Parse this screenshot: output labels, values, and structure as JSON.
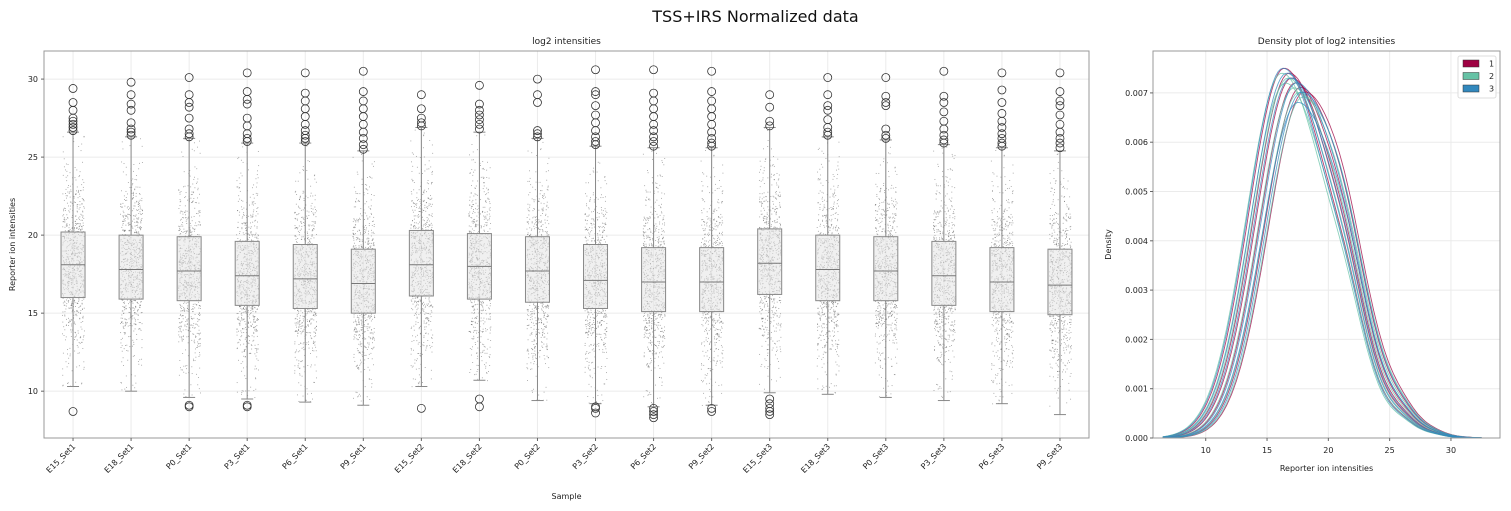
{
  "suptitle": "TSS+IRS Normalized data",
  "chart_data": [
    {
      "type": "box",
      "title": "log2 intensities",
      "xlabel": "Sample",
      "ylabel": "Reporter ion intensities",
      "ylim": [
        7,
        31.8
      ],
      "yticks": [
        10,
        15,
        20,
        25,
        30
      ],
      "grid": true,
      "overlay": "jittered raw points (strip plot)",
      "samples": [
        {
          "label": "E15_Set1",
          "q1": 16.0,
          "median": 18.1,
          "q3": 20.2,
          "whislo": 10.3,
          "whishi": 26.6,
          "fliers_high": [
            26.7,
            26.9,
            27.1,
            27.3,
            27.5,
            28.0,
            28.5,
            29.4
          ],
          "fliers_low": [
            8.7
          ]
        },
        {
          "label": "E18_Set1",
          "q1": 15.9,
          "median": 17.8,
          "q3": 20.0,
          "whislo": 10.0,
          "whishi": 26.3,
          "fliers_high": [
            26.4,
            26.6,
            26.8,
            27.2,
            28.0,
            28.4,
            29.0,
            29.8
          ],
          "fliers_low": []
        },
        {
          "label": "P0_Set1",
          "q1": 15.8,
          "median": 17.7,
          "q3": 19.9,
          "whislo": 9.6,
          "whishi": 26.2,
          "fliers_high": [
            26.3,
            26.5,
            26.8,
            27.5,
            28.2,
            28.5,
            29.0,
            30.1
          ],
          "fliers_low": [
            9.0,
            9.1
          ]
        },
        {
          "label": "P3_Set1",
          "q1": 15.5,
          "median": 17.4,
          "q3": 19.6,
          "whislo": 9.5,
          "whishi": 25.9,
          "fliers_high": [
            26.0,
            26.2,
            26.5,
            27.0,
            27.5,
            28.4,
            28.7,
            29.2,
            30.4
          ],
          "fliers_low": [
            9.0,
            9.1
          ]
        },
        {
          "label": "P6_Set1",
          "q1": 15.3,
          "median": 17.2,
          "q3": 19.4,
          "whislo": 9.3,
          "whishi": 25.9,
          "fliers_high": [
            26.0,
            26.2,
            26.4,
            26.7,
            27.1,
            27.6,
            28.1,
            28.6,
            29.1,
            30.4
          ],
          "fliers_low": []
        },
        {
          "label": "P9_Set1",
          "q1": 15.0,
          "median": 16.9,
          "q3": 19.1,
          "whislo": 9.1,
          "whishi": 25.4,
          "fliers_high": [
            25.5,
            25.8,
            26.2,
            26.6,
            27.1,
            27.6,
            28.1,
            28.6,
            29.2,
            30.5
          ],
          "fliers_low": []
        },
        {
          "label": "E15_Set2",
          "q1": 16.1,
          "median": 18.1,
          "q3": 20.3,
          "whislo": 10.3,
          "whishi": 26.9,
          "fliers_high": [
            27.0,
            27.2,
            27.5,
            28.1,
            29.0
          ],
          "fliers_low": [
            8.9
          ]
        },
        {
          "label": "E18_Set2",
          "q1": 15.9,
          "median": 18.0,
          "q3": 20.1,
          "whislo": 10.7,
          "whishi": 26.6,
          "fliers_high": [
            26.8,
            27.1,
            27.4,
            27.7,
            28.0,
            28.4,
            29.6
          ],
          "fliers_low": [
            9.0,
            9.5
          ]
        },
        {
          "label": "P0_Set2",
          "q1": 15.7,
          "median": 17.7,
          "q3": 19.9,
          "whislo": 9.4,
          "whishi": 26.2,
          "fliers_high": [
            26.3,
            26.5,
            26.7,
            28.5,
            29.0,
            30.0
          ],
          "fliers_low": []
        },
        {
          "label": "P3_Set2",
          "q1": 15.3,
          "median": 17.1,
          "q3": 19.4,
          "whislo": 9.2,
          "whishi": 25.7,
          "fliers_high": [
            25.8,
            26.0,
            26.3,
            26.7,
            27.2,
            27.7,
            28.3,
            29.0,
            29.2,
            30.6
          ],
          "fliers_low": [
            8.6,
            8.9,
            9.0
          ]
        },
        {
          "label": "P6_Set2",
          "q1": 15.1,
          "median": 17.0,
          "q3": 19.2,
          "whislo": 9.0,
          "whishi": 25.6,
          "fliers_high": [
            25.7,
            26.0,
            26.3,
            26.7,
            27.1,
            27.6,
            28.1,
            28.6,
            29.1,
            30.6
          ],
          "fliers_low": [
            8.3,
            8.5,
            8.7,
            8.9
          ]
        },
        {
          "label": "P9_Set2",
          "q1": 15.1,
          "median": 17.0,
          "q3": 19.2,
          "whislo": 9.1,
          "whishi": 25.6,
          "fliers_high": [
            25.7,
            25.9,
            26.2,
            26.6,
            27.1,
            27.6,
            28.1,
            28.6,
            29.2,
            30.5
          ],
          "fliers_low": [
            8.7,
            8.9
          ]
        },
        {
          "label": "E15_Set3",
          "q1": 16.2,
          "median": 18.2,
          "q3": 20.4,
          "whislo": 9.9,
          "whishi": 26.9,
          "fliers_high": [
            27.0,
            27.3,
            28.2,
            29.0
          ],
          "fliers_low": [
            8.5,
            8.7,
            8.9,
            9.2,
            9.5
          ]
        },
        {
          "label": "E18_Set3",
          "q1": 15.8,
          "median": 17.8,
          "q3": 20.0,
          "whislo": 9.8,
          "whishi": 26.3,
          "fliers_high": [
            26.4,
            26.6,
            26.9,
            27.4,
            28.0,
            28.3,
            29.0,
            30.1
          ],
          "fliers_low": []
        },
        {
          "label": "P0_Set3",
          "q1": 15.8,
          "median": 17.7,
          "q3": 19.9,
          "whislo": 9.6,
          "whishi": 26.1,
          "fliers_high": [
            26.2,
            26.4,
            26.8,
            28.3,
            28.5,
            28.9,
            30.1
          ],
          "fliers_low": []
        },
        {
          "label": "P3_Set3",
          "q1": 15.5,
          "median": 17.4,
          "q3": 19.6,
          "whislo": 9.4,
          "whishi": 25.8,
          "fliers_high": [
            25.9,
            26.1,
            26.4,
            26.8,
            27.3,
            27.9,
            28.5,
            28.9,
            30.5
          ],
          "fliers_low": []
        },
        {
          "label": "P6_Set3",
          "q1": 15.1,
          "median": 17.0,
          "q3": 19.2,
          "whislo": 9.2,
          "whishi": 25.6,
          "fliers_high": [
            25.7,
            25.9,
            26.2,
            26.5,
            26.9,
            27.3,
            27.8,
            28.5,
            29.3,
            30.4
          ],
          "fliers_low": []
        },
        {
          "label": "P9_Set3",
          "q1": 14.9,
          "median": 16.8,
          "q3": 19.1,
          "whislo": 8.5,
          "whishi": 25.4,
          "fliers_high": [
            25.6,
            25.9,
            26.2,
            26.6,
            27.1,
            27.7,
            28.3,
            28.6,
            29.2,
            30.4
          ],
          "fliers_low": []
        }
      ]
    },
    {
      "type": "line",
      "subtype": "density (kde)",
      "title": "Density plot of log2 intensities",
      "xlabel": "Reporter ion intensities",
      "ylabel": "Density",
      "xlim": [
        5.7,
        34
      ],
      "ylim": [
        0,
        0.00785
      ],
      "xticks": [
        10,
        15,
        20,
        25,
        30
      ],
      "yticks": [
        0.0,
        0.001,
        0.002,
        0.003,
        0.004,
        0.005,
        0.006,
        0.007
      ],
      "grid": true,
      "legend": {
        "position": "top-right",
        "entries": [
          {
            "label": "1",
            "color": "#9e0142"
          },
          {
            "label": "2",
            "color": "#66c2a5"
          },
          {
            "label": "3",
            "color": "#3288bd"
          }
        ]
      },
      "series": [
        {
          "group": "1",
          "color": "#9e0142",
          "peak_x": 16.4,
          "peak_y": 0.0075
        },
        {
          "group": "1",
          "color": "#9e0142",
          "peak_x": 16.8,
          "peak_y": 0.0074
        },
        {
          "group": "1",
          "color": "#9e0142",
          "peak_x": 17.3,
          "peak_y": 0.0072
        },
        {
          "group": "1",
          "color": "#9e0142",
          "peak_x": 17.7,
          "peak_y": 0.0071
        },
        {
          "group": "1",
          "color": "#9e0142",
          "peak_x": 18.0,
          "peak_y": 0.007
        },
        {
          "group": "1",
          "color": "#9e0142",
          "peak_x": 17.0,
          "peak_y": 0.0073
        },
        {
          "group": "2",
          "color": "#66c2a5",
          "peak_x": 16.2,
          "peak_y": 0.0074
        },
        {
          "group": "2",
          "color": "#66c2a5",
          "peak_x": 16.7,
          "peak_y": 0.0073
        },
        {
          "group": "2",
          "color": "#66c2a5",
          "peak_x": 17.2,
          "peak_y": 0.0071
        },
        {
          "group": "2",
          "color": "#66c2a5",
          "peak_x": 17.6,
          "peak_y": 0.007
        },
        {
          "group": "2",
          "color": "#66c2a5",
          "peak_x": 16.5,
          "peak_y": 0.0072
        },
        {
          "group": "2",
          "color": "#66c2a5",
          "peak_x": 17.9,
          "peak_y": 0.0069
        },
        {
          "group": "3",
          "color": "#3288bd",
          "peak_x": 16.3,
          "peak_y": 0.0075
        },
        {
          "group": "3",
          "color": "#3288bd",
          "peak_x": 16.9,
          "peak_y": 0.0073
        },
        {
          "group": "3",
          "color": "#3288bd",
          "peak_x": 17.4,
          "peak_y": 0.0072
        },
        {
          "group": "3",
          "color": "#3288bd",
          "peak_x": 17.8,
          "peak_y": 0.007
        },
        {
          "group": "3",
          "color": "#3288bd",
          "peak_x": 16.6,
          "peak_y": 0.0074
        },
        {
          "group": "3",
          "color": "#3288bd",
          "peak_x": 17.5,
          "peak_y": 0.0068
        }
      ]
    }
  ]
}
